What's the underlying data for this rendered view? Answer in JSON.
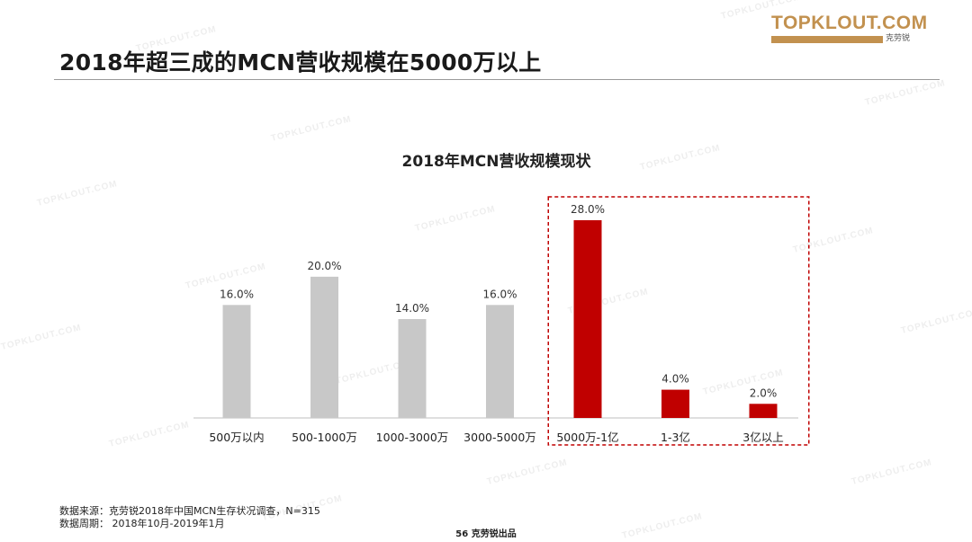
{
  "header": {
    "title": "2018年超三成的MCN营收规模在5000万以上",
    "logo_text": "TOPKLOUT.COM",
    "logo_subtext": "克劳锐"
  },
  "watermark_text": "TOPKLOUT.COM",
  "chart_data": {
    "type": "bar",
    "title": "2018年MCN营收规模现状",
    "categories": [
      "500万以内",
      "500-1000万",
      "1000-3000万",
      "3000-5000万",
      "5000万-1亿",
      "1-3亿",
      "3亿以上"
    ],
    "values": [
      16.0,
      20.0,
      14.0,
      16.0,
      28.0,
      4.0,
      2.0
    ],
    "value_labels": [
      "16.0%",
      "20.0%",
      "14.0%",
      "16.0%",
      "28.0%",
      "4.0%",
      "2.0%"
    ],
    "colors": [
      "#c8c8c8",
      "#c8c8c8",
      "#c8c8c8",
      "#c8c8c8",
      "#c00000",
      "#c00000",
      "#c00000"
    ],
    "highlight_categories": [
      "5000万-1亿",
      "1-3亿",
      "3亿以上"
    ],
    "highlight_border_color": "#c00000",
    "ylim": [
      0,
      30
    ],
    "grid": false,
    "legend": "none"
  },
  "footnotes": {
    "source": "数据来源：克劳锐2018年中国MCN生存状况调查，N=315",
    "period": "数据周期：  2018年10月-2019年1月"
  },
  "page_number": "56 克劳锐出品"
}
